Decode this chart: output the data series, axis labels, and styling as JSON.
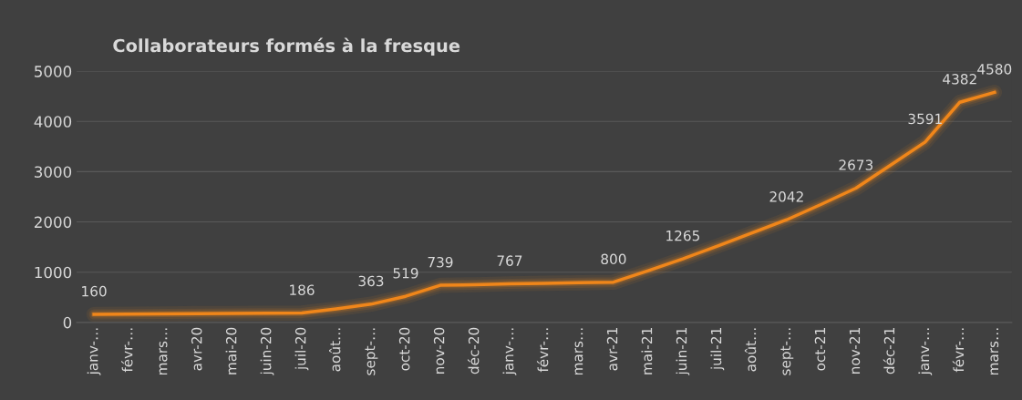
{
  "chart_data": {
    "type": "line",
    "title": "Collaborateurs formés à la fresque",
    "categories": [
      "janv-…",
      "févr-…",
      "mars…",
      "avr-20",
      "mai-20",
      "juin-20",
      "juil-20",
      "août…",
      "sept-…",
      "oct-20",
      "nov-20",
      "déc-20",
      "janv-…",
      "févr-…",
      "mars…",
      "avr-21",
      "mai-21",
      "juin-21",
      "juil-21",
      "août…",
      "sept-…",
      "oct-21",
      "nov-21",
      "déc-21",
      "janv-…",
      "févr-…",
      "mars…"
    ],
    "series": [
      {
        "color": "#f0861a",
        "values": [
          160,
          165,
          170,
          175,
          178,
          182,
          186,
          270,
          363,
          519,
          739,
          750,
          767,
          778,
          789,
          800,
          1030,
          1265,
          1520,
          1780,
          2042,
          2350,
          2673,
          3130,
          3591,
          4382,
          4580
        ],
        "value_labels": [
          "160",
          null,
          null,
          null,
          null,
          null,
          "186",
          null,
          "363",
          "519",
          "739",
          null,
          "767",
          null,
          null,
          "800",
          null,
          "1265",
          null,
          null,
          "2042",
          null,
          "2673",
          null,
          "3591",
          "4382",
          "4580"
        ]
      }
    ],
    "ylim": [
      0,
      5000
    ],
    "yticks": [
      0,
      1000,
      2000,
      3000,
      4000,
      5000
    ],
    "grid": "y",
    "legend": false,
    "marker": "none",
    "line_style": "solid"
  }
}
